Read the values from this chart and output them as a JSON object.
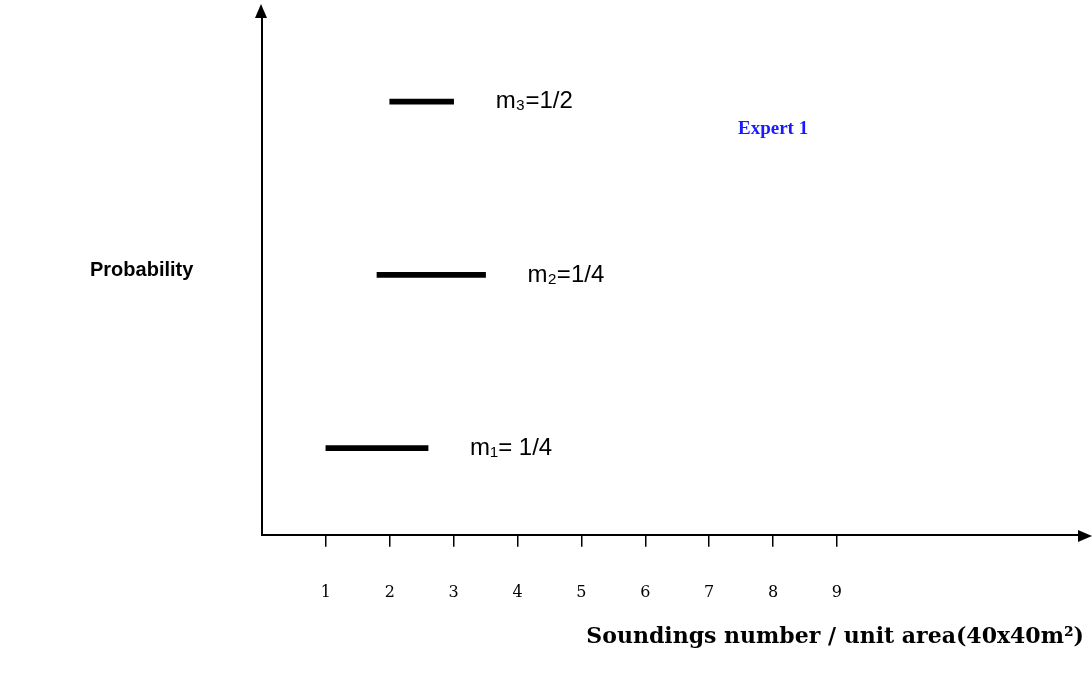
{
  "chart_data": {
    "type": "bar",
    "orientation": "horizontal",
    "categories": [
      null,
      null,
      null
    ],
    "values": [
      1,
      1.7,
      1.6
    ],
    "base": [
      2,
      1.8,
      1
    ],
    "color": "#000000",
    "value_labels": [
      "m₃=1/2",
      "m₂=1/4",
      "m₁= 1/4"
    ],
    "xlim": [
      0,
      12.9
    ],
    "xticks": [
      1,
      2,
      3,
      4,
      5,
      6,
      7,
      8,
      9
    ],
    "xlabel": "Soundings number / unit area(40x40m²)",
    "ylabel": "Probability",
    "annotations": [
      "Expert 1"
    ],
    "grid": false,
    "legend": false
  }
}
